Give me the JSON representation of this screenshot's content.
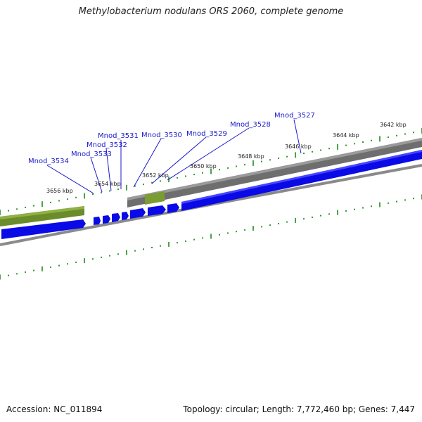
{
  "header": {
    "title": "Methylobacterium nodulans ORS 2060, complete genome"
  },
  "footer": {
    "accession": "Accession: NC_011894",
    "topology": "Topology: circular; Length: 7,772,460 bp; Genes: 7,447"
  },
  "genes": [
    {
      "name": "Mnod_3527"
    },
    {
      "name": "Mnod_3528"
    },
    {
      "name": "Mnod_3529"
    },
    {
      "name": "Mnod_3530"
    },
    {
      "name": "Mnod_3531"
    },
    {
      "name": "Mnod_3532"
    },
    {
      "name": "Mnod_3533"
    },
    {
      "name": "Mnod_3534"
    }
  ],
  "scale_labels": [
    {
      "text": "3642 kbp"
    },
    {
      "text": "3644 kbp"
    },
    {
      "text": "3646 kbp"
    },
    {
      "text": "3648 kbp"
    },
    {
      "text": "3650 kbp"
    },
    {
      "text": "3652 kbp"
    },
    {
      "text": "3654 kbp"
    },
    {
      "text": "3656 kbp"
    }
  ],
  "colors": {
    "gene_label": "#1a1acc",
    "cds": "#0a0ae6",
    "gene_bar": "#707070",
    "rna_bar": "#6b8c2a",
    "tick": "#1e8a1e",
    "backbone": "#888888"
  }
}
